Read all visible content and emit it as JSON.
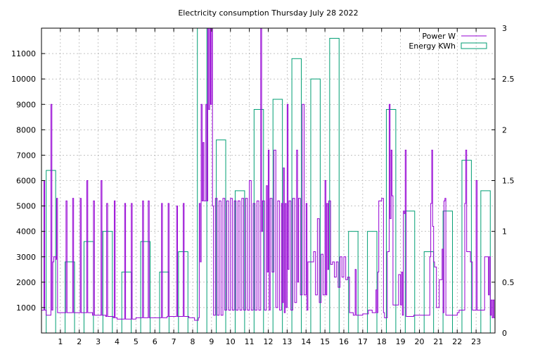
{
  "chart_data": {
    "type": "line",
    "title": "Electricity consumption Thursday July 28 2022",
    "x_range": [
      0,
      24
    ],
    "x_ticks": [
      1,
      2,
      3,
      4,
      5,
      6,
      7,
      8,
      9,
      10,
      11,
      12,
      13,
      14,
      15,
      16,
      17,
      18,
      19,
      20,
      21,
      22,
      23
    ],
    "y_left": {
      "range": [
        0,
        12000
      ],
      "ticks": [
        1000,
        2000,
        3000,
        4000,
        5000,
        6000,
        7000,
        8000,
        9000,
        10000,
        11000
      ]
    },
    "y_right": {
      "range": [
        0,
        3
      ],
      "ticks": [
        "0",
        "0.5",
        "1",
        "1.5",
        "2",
        "2.5",
        "3"
      ]
    },
    "grid": true,
    "legend_position": "top-right",
    "series": [
      {
        "name": "Power W",
        "color": "#9400d3",
        "style": "line",
        "points": [
          [
            0.0,
            900
          ],
          [
            0.1,
            900
          ],
          [
            0.13,
            6000
          ],
          [
            0.17,
            900
          ],
          [
            0.25,
            700
          ],
          [
            0.45,
            700
          ],
          [
            0.5,
            9000
          ],
          [
            0.55,
            900
          ],
          [
            0.6,
            2800
          ],
          [
            0.65,
            3000
          ],
          [
            0.75,
            2900
          ],
          [
            0.8,
            5300
          ],
          [
            0.85,
            800
          ],
          [
            1.0,
            800
          ],
          [
            1.25,
            800
          ],
          [
            1.3,
            5200
          ],
          [
            1.35,
            800
          ],
          [
            1.6,
            800
          ],
          [
            1.65,
            5300
          ],
          [
            1.7,
            800
          ],
          [
            2.0,
            800
          ],
          [
            2.05,
            5300
          ],
          [
            2.1,
            800
          ],
          [
            2.35,
            800
          ],
          [
            2.4,
            6000
          ],
          [
            2.45,
            800
          ],
          [
            2.7,
            700
          ],
          [
            2.75,
            5200
          ],
          [
            2.8,
            700
          ],
          [
            3.0,
            700
          ],
          [
            3.15,
            6000
          ],
          [
            3.2,
            700
          ],
          [
            3.4,
            650
          ],
          [
            3.45,
            5100
          ],
          [
            3.5,
            650
          ],
          [
            3.8,
            600
          ],
          [
            3.85,
            5200
          ],
          [
            3.9,
            600
          ],
          [
            4.0,
            550
          ],
          [
            4.35,
            550
          ],
          [
            4.4,
            5100
          ],
          [
            4.45,
            550
          ],
          [
            4.7,
            550
          ],
          [
            4.75,
            5100
          ],
          [
            4.8,
            550
          ],
          [
            5.0,
            600
          ],
          [
            5.3,
            600
          ],
          [
            5.35,
            5200
          ],
          [
            5.4,
            600
          ],
          [
            5.6,
            600
          ],
          [
            5.65,
            5200
          ],
          [
            5.7,
            600
          ],
          [
            6.0,
            600
          ],
          [
            6.3,
            600
          ],
          [
            6.35,
            5100
          ],
          [
            6.4,
            600
          ],
          [
            6.65,
            650
          ],
          [
            6.7,
            5100
          ],
          [
            6.75,
            650
          ],
          [
            7.0,
            650
          ],
          [
            7.1,
            650
          ],
          [
            7.15,
            5000
          ],
          [
            7.2,
            650
          ],
          [
            7.45,
            650
          ],
          [
            7.5,
            5100
          ],
          [
            7.55,
            650
          ],
          [
            7.8,
            600
          ],
          [
            8.0,
            600
          ],
          [
            8.1,
            500
          ],
          [
            8.3,
            600
          ],
          [
            8.35,
            5100
          ],
          [
            8.4,
            2800
          ],
          [
            8.45,
            9000
          ],
          [
            8.5,
            5200
          ],
          [
            8.55,
            7500
          ],
          [
            8.6,
            5200
          ],
          [
            8.7,
            9000
          ],
          [
            8.75,
            5200
          ],
          [
            8.8,
            12000
          ],
          [
            8.85,
            8800
          ],
          [
            8.9,
            12000
          ],
          [
            8.95,
            9000
          ],
          [
            9.0,
            12000
          ],
          [
            9.05,
            5000
          ],
          [
            9.1,
            700
          ],
          [
            9.2,
            5300
          ],
          [
            9.3,
            700
          ],
          [
            9.4,
            5200
          ],
          [
            9.5,
            700
          ],
          [
            9.6,
            5300
          ],
          [
            9.7,
            900
          ],
          [
            9.8,
            5200
          ],
          [
            9.9,
            900
          ],
          [
            10.0,
            5300
          ],
          [
            10.1,
            900
          ],
          [
            10.2,
            5200
          ],
          [
            10.3,
            900
          ],
          [
            10.4,
            5200
          ],
          [
            10.5,
            900
          ],
          [
            10.6,
            5300
          ],
          [
            10.7,
            900
          ],
          [
            10.8,
            5300
          ],
          [
            10.9,
            900
          ],
          [
            11.0,
            6000
          ],
          [
            11.1,
            900
          ],
          [
            11.2,
            5100
          ],
          [
            11.3,
            900
          ],
          [
            11.4,
            5200
          ],
          [
            11.5,
            900
          ],
          [
            11.6,
            12000
          ],
          [
            11.65,
            4000
          ],
          [
            11.7,
            5200
          ],
          [
            11.8,
            900
          ],
          [
            11.9,
            5800
          ],
          [
            11.95,
            2400
          ],
          [
            12.0,
            7200
          ],
          [
            12.05,
            900
          ],
          [
            12.1,
            5300
          ],
          [
            12.2,
            2400
          ],
          [
            12.3,
            7200
          ],
          [
            12.4,
            1000
          ],
          [
            12.5,
            5200
          ],
          [
            12.6,
            900
          ],
          [
            12.7,
            5100
          ],
          [
            12.75,
            1200
          ],
          [
            12.8,
            6500
          ],
          [
            12.85,
            800
          ],
          [
            12.9,
            5100
          ],
          [
            12.95,
            1000
          ],
          [
            13.0,
            9000
          ],
          [
            13.05,
            2500
          ],
          [
            13.1,
            5200
          ],
          [
            13.2,
            900
          ],
          [
            13.3,
            5300
          ],
          [
            13.4,
            1200
          ],
          [
            13.5,
            7200
          ],
          [
            13.55,
            2000
          ],
          [
            13.6,
            5300
          ],
          [
            13.7,
            1500
          ],
          [
            13.8,
            9000
          ],
          [
            13.9,
            1500
          ],
          [
            14.0,
            5100
          ],
          [
            14.05,
            900
          ],
          [
            14.1,
            2800
          ],
          [
            14.3,
            2800
          ],
          [
            14.4,
            3200
          ],
          [
            14.5,
            1500
          ],
          [
            14.6,
            4500
          ],
          [
            14.7,
            1200
          ],
          [
            14.8,
            3100
          ],
          [
            14.9,
            1500
          ],
          [
            15.0,
            6000
          ],
          [
            15.05,
            1500
          ],
          [
            15.1,
            5100
          ],
          [
            15.15,
            2500
          ],
          [
            15.2,
            5200
          ],
          [
            15.3,
            2700
          ],
          [
            15.4,
            2800
          ],
          [
            15.5,
            2200
          ],
          [
            15.6,
            2800
          ],
          [
            15.7,
            1800
          ],
          [
            15.8,
            3000
          ],
          [
            15.9,
            2200
          ],
          [
            16.0,
            3000
          ],
          [
            16.1,
            2100
          ],
          [
            16.2,
            2200
          ],
          [
            16.3,
            800
          ],
          [
            16.5,
            700
          ],
          [
            16.6,
            2500
          ],
          [
            16.65,
            700
          ],
          [
            16.8,
            700
          ],
          [
            17.0,
            750
          ],
          [
            17.2,
            750
          ],
          [
            17.3,
            900
          ],
          [
            17.5,
            800
          ],
          [
            17.7,
            1700
          ],
          [
            17.75,
            800
          ],
          [
            17.8,
            2400
          ],
          [
            17.85,
            5200
          ],
          [
            18.0,
            5300
          ],
          [
            18.1,
            800
          ],
          [
            18.15,
            600
          ],
          [
            18.3,
            3200
          ],
          [
            18.4,
            9000
          ],
          [
            18.45,
            4500
          ],
          [
            18.5,
            7200
          ],
          [
            18.55,
            5400
          ],
          [
            18.6,
            1100
          ],
          [
            18.8,
            1100
          ],
          [
            18.9,
            2300
          ],
          [
            19.0,
            1100
          ],
          [
            19.05,
            2400
          ],
          [
            19.1,
            700
          ],
          [
            19.15,
            4800
          ],
          [
            19.2,
            4700
          ],
          [
            19.25,
            7200
          ],
          [
            19.3,
            650
          ],
          [
            19.6,
            650
          ],
          [
            19.7,
            700
          ],
          [
            20.0,
            700
          ],
          [
            20.5,
            700
          ],
          [
            20.55,
            3000
          ],
          [
            20.6,
            5100
          ],
          [
            20.65,
            7200
          ],
          [
            20.7,
            4200
          ],
          [
            20.75,
            2800
          ],
          [
            20.8,
            2600
          ],
          [
            20.9,
            1000
          ],
          [
            21.0,
            1000
          ],
          [
            21.05,
            2100
          ],
          [
            21.15,
            2100
          ],
          [
            21.2,
            3300
          ],
          [
            21.25,
            800
          ],
          [
            21.3,
            5200
          ],
          [
            21.35,
            5300
          ],
          [
            21.4,
            700
          ],
          [
            21.6,
            700
          ],
          [
            21.8,
            700
          ],
          [
            22.0,
            800
          ],
          [
            22.1,
            900
          ],
          [
            22.3,
            900
          ],
          [
            22.4,
            5100
          ],
          [
            22.45,
            7200
          ],
          [
            22.5,
            3200
          ],
          [
            22.65,
            3200
          ],
          [
            22.7,
            2800
          ],
          [
            22.8,
            900
          ],
          [
            22.95,
            900
          ],
          [
            23.0,
            6000
          ],
          [
            23.05,
            900
          ],
          [
            23.4,
            900
          ],
          [
            23.45,
            3000
          ],
          [
            23.6,
            3000
          ],
          [
            23.65,
            1500
          ],
          [
            23.7,
            3000
          ],
          [
            23.75,
            700
          ],
          [
            23.8,
            1300
          ],
          [
            23.85,
            600
          ],
          [
            23.9,
            1300
          ],
          [
            23.95,
            600
          ]
        ]
      },
      {
        "name": "Energy KWh",
        "color": "#009e73",
        "style": "boxes",
        "hourly_kwh": [
          1.6,
          0.7,
          0.9,
          1.0,
          0.6,
          0.9,
          0.6,
          0.8,
          3.0,
          1.9,
          1.4,
          2.2,
          2.3,
          2.7,
          2.5,
          2.9,
          1.0,
          1.0,
          2.2,
          1.2,
          0.8,
          1.2,
          1.7,
          1.4
        ]
      }
    ]
  }
}
